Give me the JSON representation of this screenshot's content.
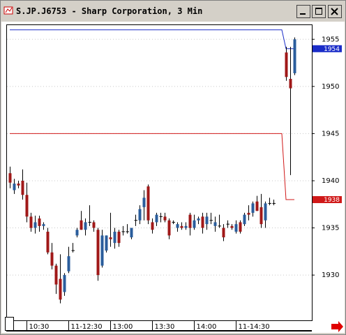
{
  "chart_data": {
    "type": "candlestick",
    "title": "S.JP.J6753 - Sharp Corporation, 3 Min",
    "categories": [
      null,
      null,
      null,
      null,
      "10:30",
      null,
      null,
      null,
      null,
      null,
      null,
      null,
      null,
      null,
      "11-12:30",
      null,
      null,
      null,
      null,
      null,
      null,
      null,
      null,
      null,
      "13:00",
      null,
      null,
      null,
      null,
      null,
      null,
      null,
      null,
      null,
      "13:30",
      null,
      null,
      null,
      null,
      null,
      null,
      null,
      null,
      null,
      "14:00",
      null,
      null,
      null,
      null,
      null,
      null,
      null,
      null,
      null,
      "11-14:30",
      null,
      null,
      null,
      null,
      null,
      null,
      null,
      null,
      null,
      null,
      null,
      null,
      null,
      null
    ],
    "open": [
      1940.8,
      1939.0,
      1939.7,
      1940.0,
      1938.5,
      1936.2,
      1935.0,
      1936.0,
      1935.2,
      1934.6,
      1932.4,
      1931.0,
      1929.6,
      1928.2,
      1930.4,
      1932.6,
      1934.2,
      1935.8,
      1934.8,
      1935.6,
      1935.6,
      1934.8,
      1931.0,
      1932.6,
      1934.0,
      1933.4,
      1934.6,
      1934.6,
      1934.6,
      1934.0,
      1935.8,
      1935.8,
      1937.2,
      1939.4,
      1935.6,
      1935.6,
      1936.2,
      1936.2,
      1935.8,
      1935.6,
      1935.0,
      1935.2,
      1935.0,
      1936.4,
      1935.0,
      1935.8,
      1936.2,
      1935.4,
      1935.8,
      1935.2,
      1935.2,
      1935.0,
      1935.4,
      1935.2,
      1934.6,
      1935.6,
      1935.4,
      1936.6,
      1936.6,
      1937.8,
      1937.2,
      1935.8,
      1937.6,
      1937.6,
      null,
      null,
      1953.6,
      1950.8,
      1951.4
    ],
    "high": [
      1941.5,
      1940.2,
      1940.0,
      1941.2,
      1939.8,
      1936.6,
      1936.3,
      1936.3,
      1935.6,
      1935.0,
      1933.4,
      1931.2,
      1932.2,
      1930.2,
      1933.0,
      1933.4,
      1935.0,
      1936.8,
      1936.0,
      1937.4,
      1935.8,
      1935.0,
      1934.8,
      1934.2,
      1936.6,
      1935.0,
      1934.8,
      1935.2,
      1935.4,
      1935.0,
      1936.4,
      1937.4,
      1939.0,
      1939.6,
      1936.0,
      1936.6,
      1936.6,
      1936.6,
      1936.0,
      1935.8,
      1935.6,
      1935.6,
      1935.6,
      1936.6,
      1936.4,
      1936.2,
      1936.6,
      1936.6,
      1936.6,
      1936.2,
      1936.4,
      1935.4,
      1935.8,
      1935.4,
      1935.8,
      1935.8,
      1936.6,
      1937.4,
      1937.8,
      1938.4,
      1938.6,
      1937.8,
      1938.2,
      1938.0,
      null,
      null,
      1954.2,
      1954.2,
      1955.2
    ],
    "low": [
      1939.2,
      1938.6,
      1939.2,
      1938.0,
      1935.6,
      1934.6,
      1934.4,
      1934.6,
      1934.8,
      1932.2,
      1930.6,
      1928.0,
      1927.0,
      1927.8,
      1930.2,
      1932.4,
      1934.0,
      1934.8,
      1934.2,
      1935.2,
      1934.6,
      1929.4,
      1930.8,
      1932.4,
      1933.0,
      1932.8,
      1933.0,
      1934.2,
      1934.4,
      1933.8,
      1935.2,
      1935.4,
      1935.8,
      1935.4,
      1934.4,
      1935.2,
      1935.6,
      1935.6,
      1933.8,
      1935.4,
      1934.6,
      1934.8,
      1934.8,
      1934.2,
      1934.8,
      1935.4,
      1934.4,
      1934.8,
      1935.4,
      1934.6,
      1935.0,
      1933.6,
      1935.0,
      1934.8,
      1934.4,
      1934.4,
      1935.2,
      1935.8,
      1936.2,
      1936.8,
      1935.0,
      1935.0,
      1937.4,
      1937.4,
      null,
      null,
      1950.6,
      1940.6,
      1951.2
    ],
    "close": [
      1939.8,
      1939.7,
      1939.5,
      1938.5,
      1936.2,
      1935.0,
      1935.6,
      1935.2,
      1935.4,
      1932.4,
      1931.0,
      1929.0,
      1927.4,
      1930.0,
      1932.0,
      1932.6,
      1934.8,
      1934.8,
      1935.6,
      1935.6,
      1935.0,
      1930.0,
      1934.2,
      1934.2,
      1933.8,
      1934.6,
      1933.4,
      1934.6,
      1934.6,
      1935.0,
      1935.8,
      1937.0,
      1938.2,
      1935.8,
      1934.8,
      1936.4,
      1936.2,
      1935.8,
      1934.2,
      1935.6,
      1935.4,
      1935.0,
      1935.2,
      1935.0,
      1935.8,
      1936.0,
      1935.0,
      1936.2,
      1935.8,
      1935.6,
      1935.2,
      1934.0,
      1935.4,
      1935.0,
      1935.4,
      1934.6,
      1936.4,
      1936.4,
      1937.6,
      1936.8,
      1935.4,
      1937.6,
      1937.6,
      1937.6,
      null,
      null,
      1951.0,
      1949.8,
      1955.0
    ],
    "up_color": "#2a5d9c",
    "down_color": "#a01818",
    "series": [
      {
        "color": "#1a2cc8",
        "values": [
          1956,
          1956,
          1956,
          1956,
          1956,
          1956,
          1956,
          1956,
          1956,
          1956,
          1956,
          1956,
          1956,
          1956,
          1956,
          1956,
          1956,
          1956,
          1956,
          1956,
          1956,
          1956,
          1956,
          1956,
          1956,
          1956,
          1956,
          1956,
          1956,
          1956,
          1956,
          1956,
          1956,
          1956,
          1956,
          1956,
          1956,
          1956,
          1956,
          1956,
          1956,
          1956,
          1956,
          1956,
          1956,
          1956,
          1956,
          1956,
          1956,
          1956,
          1956,
          1956,
          1956,
          1956,
          1956,
          1956,
          1956,
          1956,
          1956,
          1956,
          1956,
          1956,
          1956,
          1956,
          1956,
          1956,
          1954,
          1954,
          1954
        ]
      },
      {
        "color": "#d01818",
        "values": [
          1945,
          1945,
          1945,
          1945,
          1945,
          1945,
          1945,
          1945,
          1945,
          1945,
          1945,
          1945,
          1945,
          1945,
          1945,
          1945,
          1945,
          1945,
          1945,
          1945,
          1945,
          1945,
          1945,
          1945,
          1945,
          1945,
          1945,
          1945,
          1945,
          1945,
          1945,
          1945,
          1945,
          1945,
          1945,
          1945,
          1945,
          1945,
          1945,
          1945,
          1945,
          1945,
          1945,
          1945,
          1945,
          1945,
          1945,
          1945,
          1945,
          1945,
          1945,
          1945,
          1945,
          1945,
          1945,
          1945,
          1945,
          1945,
          1945,
          1945,
          1945,
          1945,
          1945,
          1945,
          1945,
          1945,
          1938,
          1938,
          1938
        ]
      }
    ],
    "ylim": [
      1925.2,
      1956.5
    ],
    "yticks": [
      1930,
      1935,
      1940,
      1945,
      1950,
      1955
    ],
    "grid": true
  }
}
